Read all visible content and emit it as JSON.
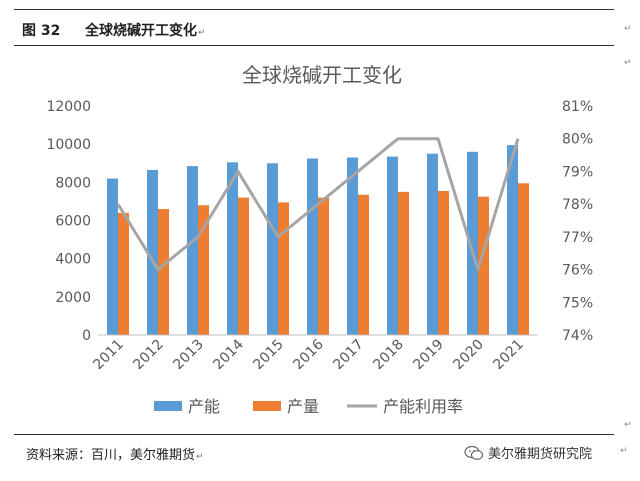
{
  "header": {
    "figure_label": "图 32",
    "figure_title": "全球烧碱开工变化",
    "para_mark": "↵"
  },
  "footer": {
    "source": "资料来源：百川，美尔雅期货",
    "brand": "美尔雅期货研究院"
  },
  "colors": {
    "capacity": "#5B9BD5",
    "output": "#ED7D31",
    "utilization": "#A5A5A5"
  },
  "chart_data": {
    "type": "bar",
    "title": "全球烧碱开工变化",
    "categories": [
      "2011",
      "2012",
      "2013",
      "2014",
      "2015",
      "2016",
      "2017",
      "2018",
      "2019",
      "2020",
      "2021"
    ],
    "series": [
      {
        "name": "产能",
        "type": "bar",
        "axis": "left",
        "values": [
          8200,
          8650,
          8850,
          9050,
          9000,
          9250,
          9300,
          9350,
          9500,
          9600,
          9950
        ]
      },
      {
        "name": "产量",
        "type": "bar",
        "axis": "left",
        "values": [
          6400,
          6600,
          6800,
          7200,
          6950,
          7200,
          7350,
          7500,
          7550,
          7250,
          7950
        ]
      },
      {
        "name": "产能利用率",
        "type": "line",
        "axis": "right",
        "values": [
          78,
          76,
          77,
          79,
          77,
          78,
          79,
          80,
          80,
          76,
          80
        ]
      }
    ],
    "ylim_left": [
      0,
      12000
    ],
    "yticks_left": [
      "0",
      "2000",
      "4000",
      "6000",
      "8000",
      "10000",
      "12000"
    ],
    "ylim_right": [
      74,
      81
    ],
    "yticks_right": [
      "74%",
      "75%",
      "76%",
      "77%",
      "78%",
      "79%",
      "80%",
      "81%"
    ],
    "legend_position": "bottom"
  }
}
